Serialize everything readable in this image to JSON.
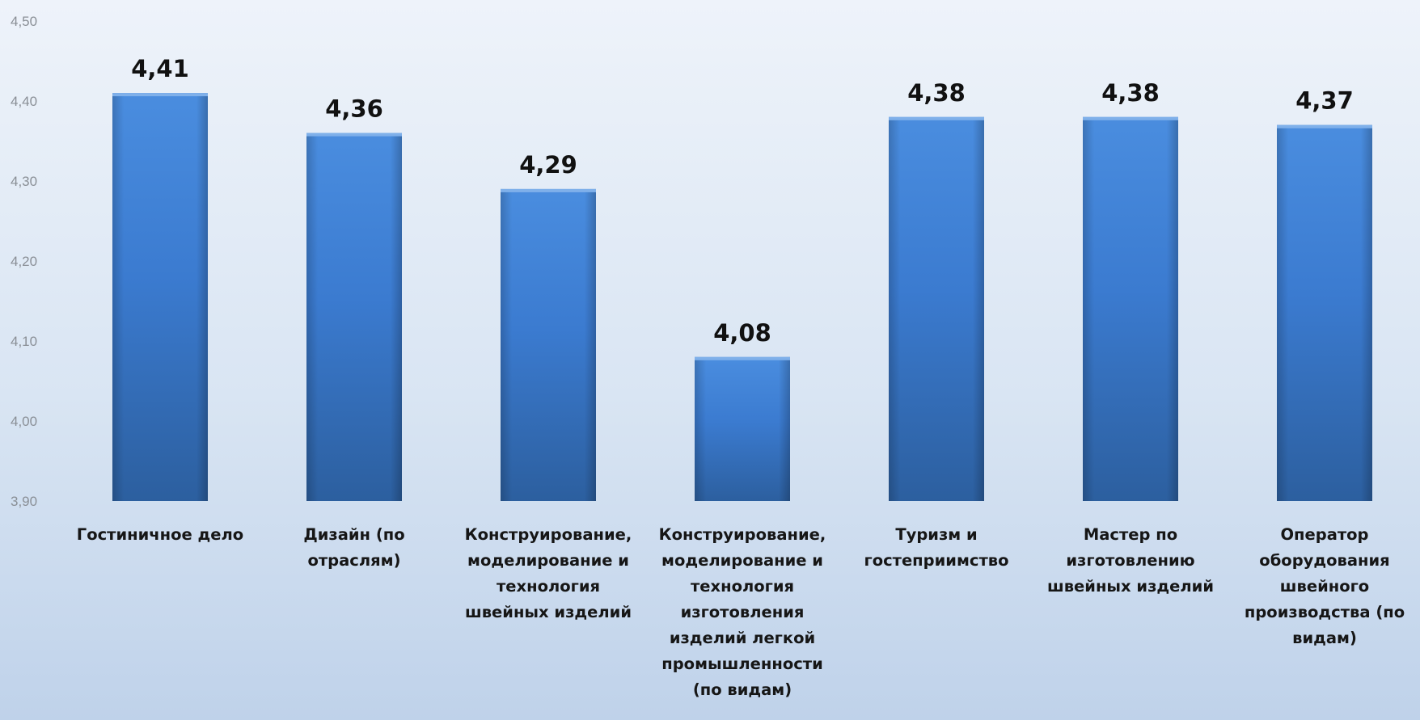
{
  "chart_data": {
    "type": "bar",
    "categories": [
      "Гостиничное дело",
      "Дизайн (по отраслям)",
      "Конструирование, моделирование и технология швейных изделий",
      "Конструирование, моделирование и технология изготовления изделий легкой промышленности (по видам)",
      "Туризм и гостеприимство",
      "Мастер по изготовлению швейных изделий",
      "Оператор оборудования швейного производства (по видам)"
    ],
    "category_lines": [
      [
        "Гостиничное дело"
      ],
      [
        "Дизайн (по",
        "отраслям)"
      ],
      [
        "Конструирование,",
        "моделирование и",
        "технология",
        "швейных изделий"
      ],
      [
        "Конструирование,",
        "моделирование и",
        "технология",
        "изготовления",
        "изделий легкой",
        "промышленности",
        "(по видам)"
      ],
      [
        "Туризм и",
        "гостеприимство"
      ],
      [
        "Мастер по",
        "изготовлению",
        "швейных изделий"
      ],
      [
        "Оператор",
        "оборудования",
        "швейного",
        "производства (по",
        "видам)"
      ]
    ],
    "values": [
      4.41,
      4.36,
      4.29,
      4.08,
      4.38,
      4.38,
      4.37
    ],
    "value_labels": [
      "4,41",
      "4,36",
      "4,29",
      "4,08",
      "4,38",
      "4,38",
      "4,37"
    ],
    "ylim": [
      3.9,
      4.5
    ],
    "y_ticks": [
      3.9,
      4.0,
      4.1,
      4.2,
      4.3,
      4.4,
      4.5
    ],
    "y_tick_labels": [
      "3,90",
      "4,00",
      "4,10",
      "4,20",
      "4,30",
      "4,40",
      "4,50"
    ],
    "grid": false,
    "legend": "none",
    "bar_color": "#3d7fd4"
  }
}
